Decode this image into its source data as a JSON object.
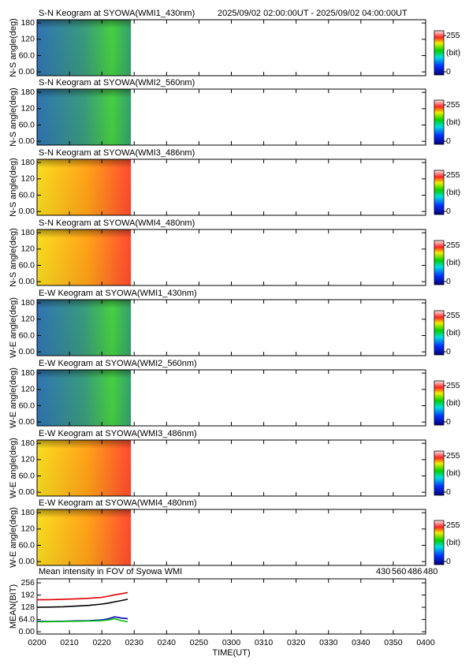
{
  "chart_data": [
    {
      "type": "keogram",
      "title": "S-N Keogram at SYOWA(WMI1_430nm)",
      "time_range": "2025/09/02 02:00:00UT - 2025/09/02 04:00:00UT",
      "ylabel": "N-S angle(deg)",
      "ylim": [
        -14,
        192
      ],
      "yticks": [
        {
          "value": 0,
          "label": "0.00"
        },
        {
          "value": 60,
          "label": "60.0"
        },
        120,
        180
      ],
      "clim": [
        0,
        255
      ],
      "cticks": [
        0,
        255
      ],
      "clabel": "(bit)"
    },
    {
      "type": "keogram",
      "title": "S-N Keogram at SYOWA(WMI2_560nm)",
      "ylabel": "N-S angle(deg)",
      "ylim": [
        -14,
        192
      ],
      "yticks": [
        {
          "value": 0,
          "label": "0.00"
        },
        {
          "value": 60,
          "label": "60.0"
        },
        120,
        180
      ],
      "clim": [
        0,
        255
      ],
      "cticks": [
        0,
        255
      ],
      "clabel": "(bit)"
    },
    {
      "type": "keogram",
      "title": "S-N Keogram at SYOWA(WMI3_486nm)",
      "ylabel": "N-S angle(deg)",
      "ylim": [
        -14,
        192
      ],
      "yticks": [
        {
          "value": 0,
          "label": "0.00"
        },
        {
          "value": 60,
          "label": "60.0"
        },
        120,
        180
      ],
      "clim": [
        0,
        255
      ],
      "cticks": [
        0,
        255
      ],
      "clabel": "(bit)"
    },
    {
      "type": "keogram",
      "title": "S-N Keogram at SYOWA(WMI4_480nm)",
      "ylabel": "N-S angle(deg)",
      "ylim": [
        -14,
        192
      ],
      "yticks": [
        {
          "value": 0,
          "label": "0.00"
        },
        {
          "value": 60,
          "label": "60.0"
        },
        120,
        180
      ],
      "clim": [
        0,
        255
      ],
      "cticks": [
        0,
        255
      ],
      "clabel": "(bit)"
    },
    {
      "type": "keogram",
      "title": "E-W Keogram at SYOWA(WMI1_430nm)",
      "ylabel": "W-E angle(deg)",
      "ylim": [
        -14,
        192
      ],
      "yticks": [
        {
          "value": 0,
          "label": "0.00"
        },
        {
          "value": 60,
          "label": "60.0"
        },
        120,
        180
      ],
      "clim": [
        0,
        255
      ],
      "cticks": [
        0,
        255
      ],
      "clabel": "(bit)"
    },
    {
      "type": "keogram",
      "title": "E-W Keogram at SYOWA(WMI2_560nm)",
      "ylabel": "W-E angle(deg)",
      "ylim": [
        -14,
        192
      ],
      "yticks": [
        {
          "value": 0,
          "label": "0.00"
        },
        {
          "value": 60,
          "label": "60.0"
        },
        120,
        180
      ],
      "clim": [
        0,
        255
      ],
      "cticks": [
        0,
        255
      ],
      "clabel": "(bit)"
    },
    {
      "type": "keogram",
      "title": "E-W Keogram at SYOWA(WMI3_486nm)",
      "ylabel": "W-E angle(deg)",
      "ylim": [
        -14,
        192
      ],
      "yticks": [
        {
          "value": 0,
          "label": "0.00"
        },
        {
          "value": 60,
          "label": "60.0"
        },
        120,
        180
      ],
      "clim": [
        0,
        255
      ],
      "cticks": [
        0,
        255
      ],
      "clabel": "(bit)"
    },
    {
      "type": "keogram",
      "title": "E-W Keogram at SYOWA(WMI4_480nm)",
      "ylabel": "W-E angle(deg)",
      "ylim": [
        -14,
        192
      ],
      "yticks": [
        {
          "value": 0,
          "label": "0.00"
        },
        {
          "value": 60,
          "label": "60.0"
        },
        120,
        180
      ],
      "clim": [
        0,
        255
      ],
      "cticks": [
        0,
        255
      ],
      "clabel": "(bit)"
    },
    {
      "type": "line",
      "title": "Mean intensity in FOV of Syowa WMI",
      "xlabel": "TIME(UT)",
      "ylabel": "MEAN(BIT)",
      "xlim": [
        0,
        120
      ],
      "xticks": [
        {
          "value": 0,
          "label": "0200"
        },
        {
          "value": 10,
          "label": "0210"
        },
        {
          "value": 20,
          "label": "0220"
        },
        {
          "value": 30,
          "label": "0230"
        },
        {
          "value": 40,
          "label": "0240"
        },
        {
          "value": 50,
          "label": "0250"
        },
        {
          "value": 60,
          "label": "0300"
        },
        {
          "value": 70,
          "label": "0310"
        },
        {
          "value": 80,
          "label": "0320"
        },
        {
          "value": 90,
          "label": "0330"
        },
        {
          "value": 100,
          "label": "0340"
        },
        {
          "value": 110,
          "label": "0350"
        },
        {
          "value": 120,
          "label": "0400"
        }
      ],
      "ylim": [
        -12,
        277
      ],
      "yticks": [
        {
          "value": 0,
          "label": "0.00"
        },
        {
          "value": 64,
          "label": "64.0"
        },
        128,
        192,
        256
      ],
      "x": [
        0,
        4,
        8,
        12,
        16,
        20,
        22,
        24,
        26,
        28
      ],
      "series": [
        {
          "name": "430",
          "color": "#0000c0",
          "values": [
            55,
            54,
            55,
            57,
            58,
            62,
            68,
            78,
            72,
            68
          ]
        },
        {
          "name": "560",
          "color": "#00c000",
          "values": [
            52,
            53,
            54,
            55,
            56,
            58,
            62,
            68,
            58,
            52
          ]
        },
        {
          "name": "486",
          "color": "#e00000",
          "values": [
            167,
            168,
            170,
            172,
            175,
            180,
            186,
            193,
            199,
            205
          ]
        },
        {
          "name": "480",
          "color": "#000000",
          "values": [
            128,
            129,
            131,
            134,
            138,
            145,
            150,
            157,
            163,
            170
          ]
        }
      ]
    }
  ]
}
